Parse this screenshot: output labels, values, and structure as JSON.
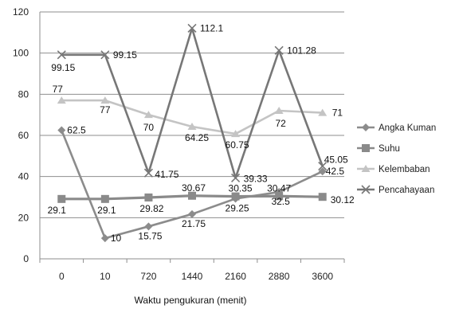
{
  "chart_data": {
    "type": "line",
    "title": "",
    "xlabel": "Waktu pengukuran (menit)",
    "ylabel": "",
    "ylim": [
      0,
      120
    ],
    "yticks": [
      0,
      20,
      40,
      60,
      80,
      100,
      120
    ],
    "grid": true,
    "legend_position": "right",
    "categories": [
      "0",
      "10",
      "720",
      "1440",
      "2160",
      "2880",
      "3600"
    ],
    "series": [
      {
        "name": "Angka Kuman",
        "color": "#8c8c8c",
        "marker": "diamond",
        "values": [
          62.5,
          10,
          15.75,
          21.75,
          29.25,
          32.5,
          42.5
        ],
        "labels": [
          "62.5",
          "10",
          "15.75",
          "21.75",
          "29.25",
          "32.5",
          "42.5"
        ]
      },
      {
        "name": "Suhu",
        "color": "#8a8a8a",
        "marker": "square",
        "values": [
          29.1,
          29.1,
          29.82,
          30.67,
          30.35,
          30.47,
          30.12
        ],
        "labels": [
          "29.1",
          "29.1",
          "29.82",
          "30.67",
          "30.35",
          "30.47",
          "30.12"
        ]
      },
      {
        "name": "Kelembaban",
        "color": "#c4c4c4",
        "marker": "triangle",
        "values": [
          77,
          77,
          70,
          64.25,
          60.75,
          72,
          71
        ],
        "labels": [
          "77",
          "77",
          "70",
          "64.25",
          "60.75",
          "72",
          "71"
        ]
      },
      {
        "name": "Pencahayaan",
        "color": "#777777",
        "marker": "x",
        "values": [
          99.15,
          99.15,
          41.75,
          112.1,
          39.33,
          101.28,
          45.05
        ],
        "labels": [
          "99.15",
          "99.15",
          "41.75",
          "112.1",
          "39.33",
          "101.28",
          "45.05"
        ]
      }
    ]
  }
}
